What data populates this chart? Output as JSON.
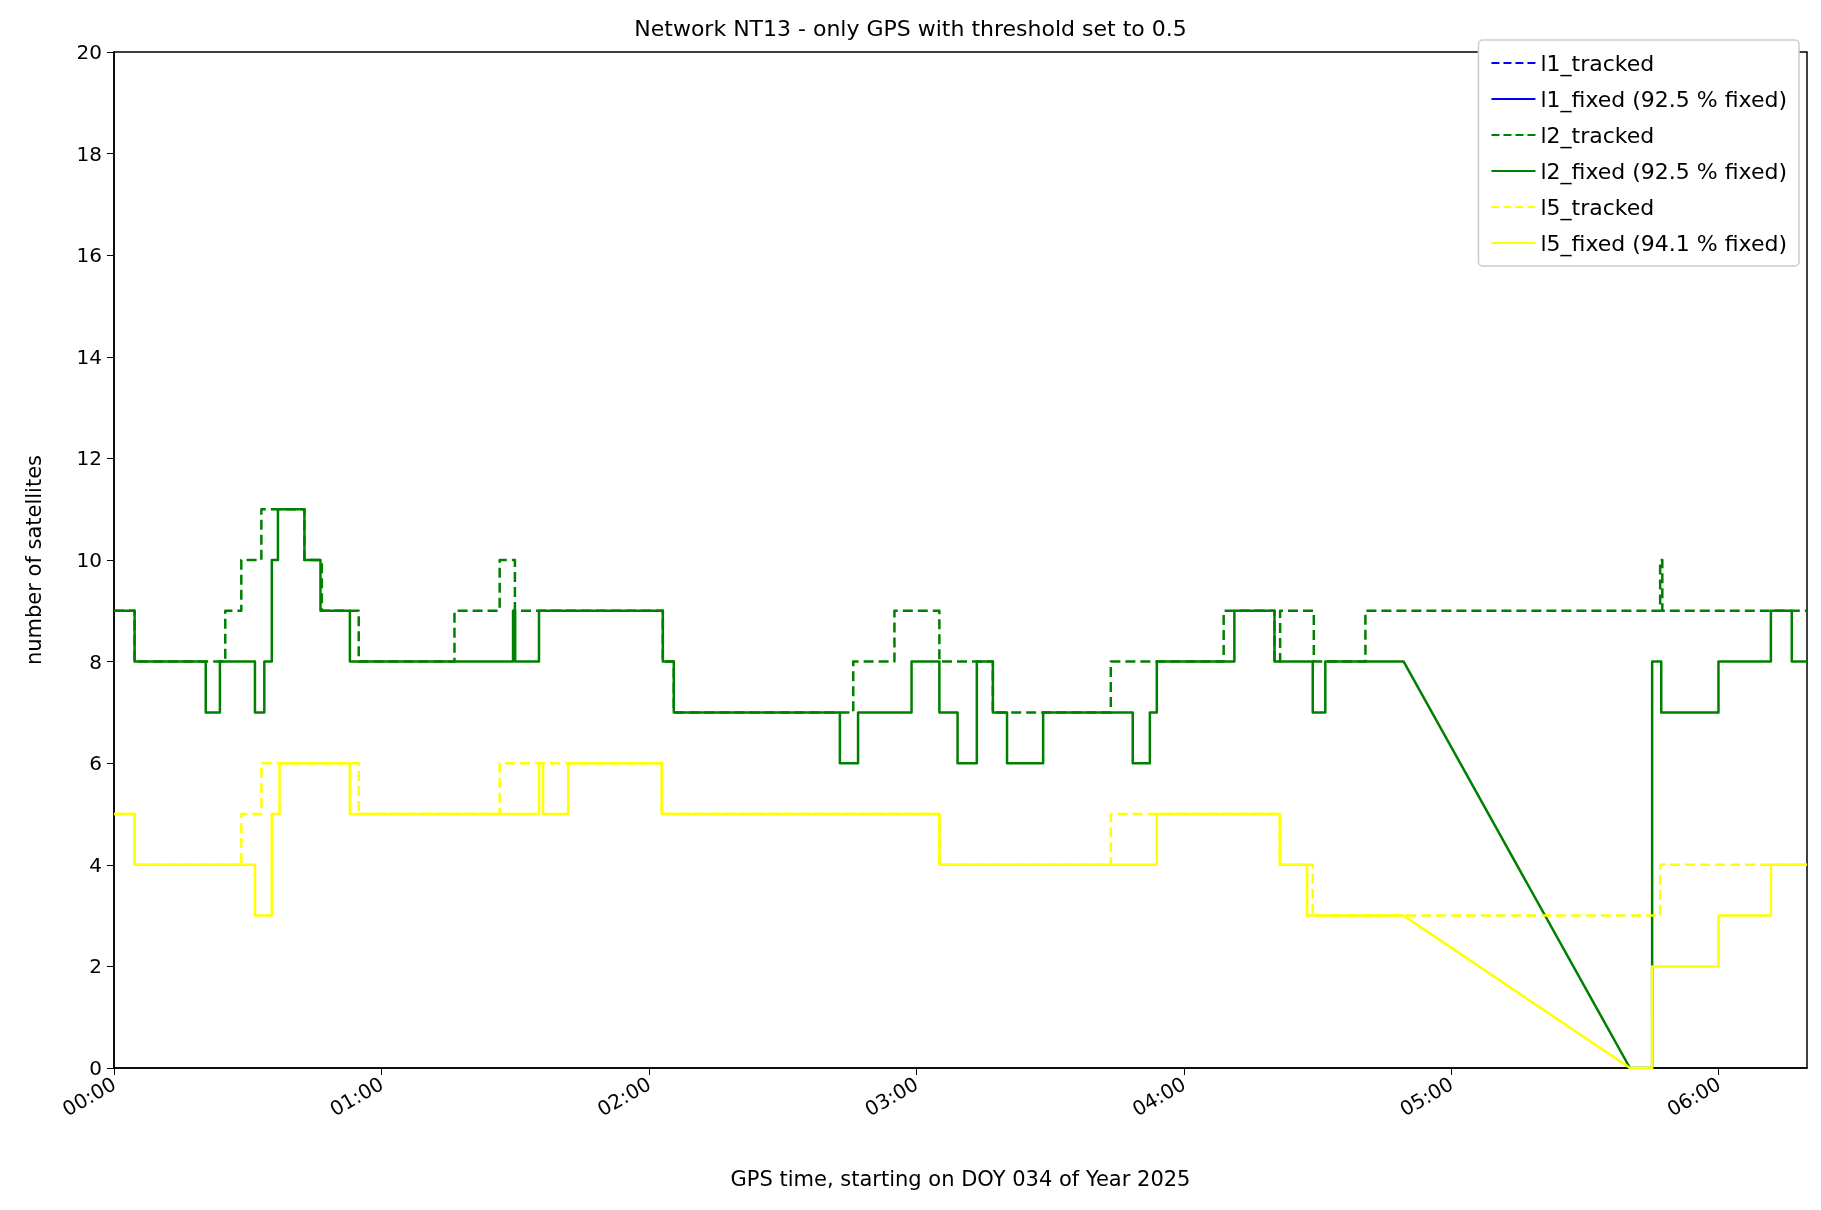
{
  "chart_data": {
    "type": "line",
    "title": "Network NT13 - only GPS with threshold set to 0.5",
    "xlabel": "GPS time, starting on DOY 034 of Year 2025",
    "ylabel": "number of satellites",
    "xlim": [
      0,
      6.33
    ],
    "xticks": [
      {
        "value": 0,
        "label": "00:00"
      },
      {
        "value": 1,
        "label": "01:00"
      },
      {
        "value": 2,
        "label": "02:00"
      },
      {
        "value": 3,
        "label": "03:00"
      },
      {
        "value": 4,
        "label": "04:00"
      },
      {
        "value": 5,
        "label": "05:00"
      },
      {
        "value": 6,
        "label": "06:00"
      }
    ],
    "ylim": [
      0,
      20
    ],
    "yticks": [
      0,
      2,
      4,
      6,
      8,
      10,
      12,
      14,
      16,
      18,
      20
    ],
    "legend": "top right",
    "series": [
      {
        "name": "l1_tracked",
        "color": "#0000ff",
        "line_style": "dashed"
      },
      {
        "name": "l1_fixed (92.5 % fixed)",
        "color": "#0000ff",
        "line_style": "solid"
      },
      {
        "name": "l2_tracked",
        "color": "#008000",
        "line_style": "dashed",
        "x": [
          0,
          0.077,
          0.077,
          0.416,
          0.416,
          0.476,
          0.476,
          0.551,
          0.551,
          0.712,
          0.712,
          0.777,
          0.777,
          0.915,
          0.915,
          1.273,
          1.273,
          1.442,
          1.442,
          1.499,
          1.499,
          2.052,
          2.052,
          2.093,
          2.093,
          2.764,
          2.764,
          2.918,
          2.918,
          3.086,
          3.086,
          3.286,
          3.286,
          3.727,
          3.727,
          4.149,
          4.149,
          4.339,
          4.339,
          4.36,
          4.36,
          4.486,
          4.486,
          4.679,
          4.679,
          5.781,
          5.781,
          5.789,
          5.789,
          6.33
        ],
        "values": [
          9,
          9,
          8,
          8,
          9,
          9,
          10,
          10,
          11,
          11,
          10,
          10,
          9,
          9,
          8,
          8,
          9,
          9,
          10,
          10,
          9,
          9,
          8,
          8,
          7,
          7,
          8,
          8,
          9,
          9,
          8,
          8,
          7,
          7,
          8,
          8,
          9,
          9,
          8,
          8,
          9,
          9,
          8,
          8,
          9,
          9,
          10,
          10,
          9,
          9
        ]
      },
      {
        "name": "l2_fixed (92.5 % fixed)",
        "color": "#008000",
        "line_style": "solid",
        "x": [
          0,
          0.077,
          0.077,
          0.343,
          0.343,
          0.396,
          0.396,
          0.527,
          0.527,
          0.562,
          0.562,
          0.59,
          0.59,
          0.613,
          0.613,
          0.712,
          0.712,
          0.772,
          0.772,
          0.882,
          0.882,
          1.492,
          1.492,
          1.5,
          1.5,
          1.589,
          1.589,
          2.052,
          2.052,
          2.093,
          2.093,
          2.714,
          2.714,
          2.782,
          2.782,
          2.982,
          2.982,
          3.086,
          3.086,
          3.154,
          3.154,
          3.226,
          3.226,
          3.286,
          3.286,
          3.339,
          3.339,
          3.474,
          3.474,
          3.809,
          3.809,
          3.873,
          3.873,
          3.899,
          3.899,
          4.189,
          4.189,
          4.339,
          4.339,
          4.482,
          4.482,
          4.529,
          4.529,
          4.822,
          5.668,
          5.751,
          5.751,
          5.785,
          5.785,
          5.999,
          5.999,
          6.195,
          6.195,
          6.273,
          6.273,
          6.33
        ],
        "values": [
          9,
          9,
          8,
          8,
          7,
          7,
          8,
          8,
          7,
          7,
          8,
          8,
          10,
          10,
          11,
          11,
          10,
          10,
          9,
          9,
          8,
          8,
          9,
          9,
          8,
          8,
          9,
          9,
          8,
          8,
          7,
          7,
          6,
          6,
          7,
          7,
          8,
          8,
          7,
          7,
          6,
          6,
          8,
          8,
          7,
          7,
          6,
          6,
          7,
          7,
          6,
          6,
          7,
          7,
          8,
          8,
          9,
          9,
          8,
          8,
          7,
          7,
          8,
          8,
          0,
          0,
          8,
          8,
          7,
          7,
          8,
          8,
          9,
          9,
          8,
          8
        ]
      },
      {
        "name": "l5_tracked",
        "color": "#ffff00",
        "line_style": "dashed",
        "x": [
          0,
          0.077,
          0.077,
          0.476,
          0.476,
          0.551,
          0.551,
          0.915,
          0.915,
          1.442,
          1.442,
          2.048,
          2.048,
          3.086,
          3.086,
          3.727,
          3.727,
          4.359,
          4.359,
          4.482,
          4.482,
          5.781,
          5.781,
          6.33
        ],
        "values": [
          5,
          5,
          4,
          4,
          5,
          5,
          6,
          6,
          5,
          5,
          6,
          6,
          5,
          5,
          4,
          4,
          5,
          5,
          4,
          4,
          3,
          3,
          4,
          4
        ]
      },
      {
        "name": "l5_fixed (94.1 % fixed)",
        "color": "#ffff00",
        "line_style": "solid",
        "x": [
          0,
          0.077,
          0.077,
          0.527,
          0.527,
          0.59,
          0.59,
          0.619,
          0.619,
          0.882,
          0.882,
          1.589,
          1.589,
          1.604,
          1.604,
          1.698,
          1.698,
          2.048,
          2.048,
          3.086,
          3.086,
          3.899,
          3.899,
          4.359,
          4.359,
          4.461,
          4.461,
          4.822,
          5.668,
          5.751,
          5.751,
          5.999,
          5.999,
          6.195,
          6.195,
          6.33
        ],
        "values": [
          5,
          5,
          4,
          4,
          3,
          3,
          5,
          5,
          6,
          6,
          5,
          5,
          6,
          6,
          5,
          5,
          6,
          6,
          5,
          5,
          4,
          4,
          5,
          5,
          4,
          4,
          3,
          3,
          0,
          0,
          2,
          2,
          3,
          3,
          4,
          4
        ]
      }
    ]
  }
}
